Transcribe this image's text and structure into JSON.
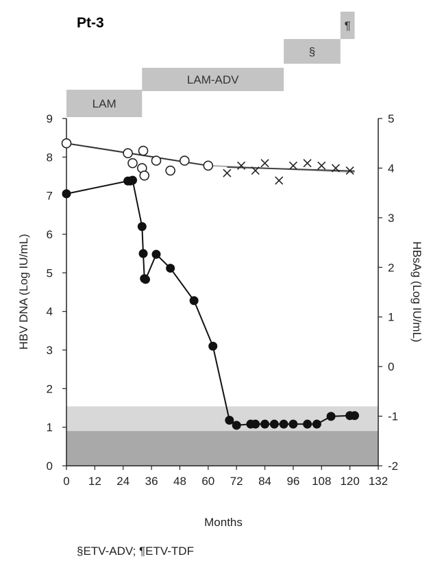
{
  "chart_data": {
    "type": "scatter",
    "title": "Pt-3",
    "xlabel": "Months",
    "ylabel_left": "HBV DNA (Log IU/mL)",
    "ylabel_right": "HBsAg (Log IU/mL)",
    "xlim": [
      0,
      132
    ],
    "ylim_left": [
      0,
      9
    ],
    "ylim_right": [
      -2,
      5
    ],
    "x_ticks": [
      "0",
      "12",
      "24",
      "36",
      "48",
      "60",
      "72",
      "84",
      "96",
      "108",
      "120",
      "132"
    ],
    "y_left_ticks": [
      "0",
      "1",
      "2",
      "3",
      "4",
      "5",
      "6",
      "7",
      "8",
      "9"
    ],
    "y_right_ticks": [
      "-2",
      "-1",
      "0",
      "1",
      "2",
      "3",
      "4",
      "5"
    ],
    "therapy_bars": [
      {
        "label": "LAM",
        "start": 0,
        "end": 32
      },
      {
        "label": "LAM-ADV",
        "start": 32,
        "end": 92
      },
      {
        "label": "§",
        "start": 92,
        "end": 116
      },
      {
        "label": "¶",
        "start": 116,
        "end": 122
      }
    ],
    "footnote": "§ETV-ADV; ¶ETV-TDF",
    "series": [
      {
        "axis": "left",
        "marker": "filled-circle",
        "x": [
          0,
          26,
          27,
          28,
          32,
          32.5,
          33,
          33.5,
          38,
          44,
          54,
          62,
          69,
          72,
          78,
          80,
          84,
          88,
          92,
          96,
          102,
          106,
          112,
          120,
          122
        ],
        "y": [
          7.05,
          7.38,
          7.38,
          7.4,
          6.2,
          5.5,
          4.85,
          4.83,
          5.48,
          5.12,
          4.28,
          3.1,
          1.18,
          1.05,
          1.08,
          1.08,
          1.08,
          1.08,
          1.08,
          1.08,
          1.08,
          1.08,
          1.28,
          1.3,
          1.3
        ]
      },
      {
        "axis": "right",
        "marker": "open-circle",
        "x": [
          0,
          26,
          28,
          32,
          32.5,
          33,
          38,
          44,
          50,
          60
        ],
        "y": [
          4.5,
          4.3,
          4.1,
          4.0,
          4.35,
          3.85,
          4.15,
          3.95,
          4.15,
          4.05
        ]
      },
      {
        "axis": "right",
        "marker": "x",
        "x": [
          68,
          74,
          80,
          84,
          90,
          96,
          102,
          108,
          114,
          120
        ],
        "y": [
          3.9,
          4.05,
          3.95,
          4.1,
          3.75,
          4.05,
          4.1,
          4.05,
          4.0,
          3.95
        ]
      }
    ],
    "trendlines": [
      {
        "axis": "right",
        "x": [
          0,
          60
        ],
        "y": [
          4.5,
          4.05
        ],
        "color": "#333333"
      },
      {
        "axis": "right",
        "x": [
          60,
          122
        ],
        "y": [
          4.05,
          3.92
        ],
        "color": "#aaaaaa"
      },
      {
        "axis": "right",
        "x": [
          68,
          122
        ],
        "y": [
          4.02,
          3.94
        ],
        "color": "#444444"
      }
    ],
    "shaded_regions": [
      {
        "axis": "left",
        "y": [
          0,
          1.54
        ],
        "color": "#d8d8d8"
      },
      {
        "axis": "left",
        "y": [
          0,
          0.9
        ],
        "color": "#a9a9a9"
      }
    ]
  }
}
